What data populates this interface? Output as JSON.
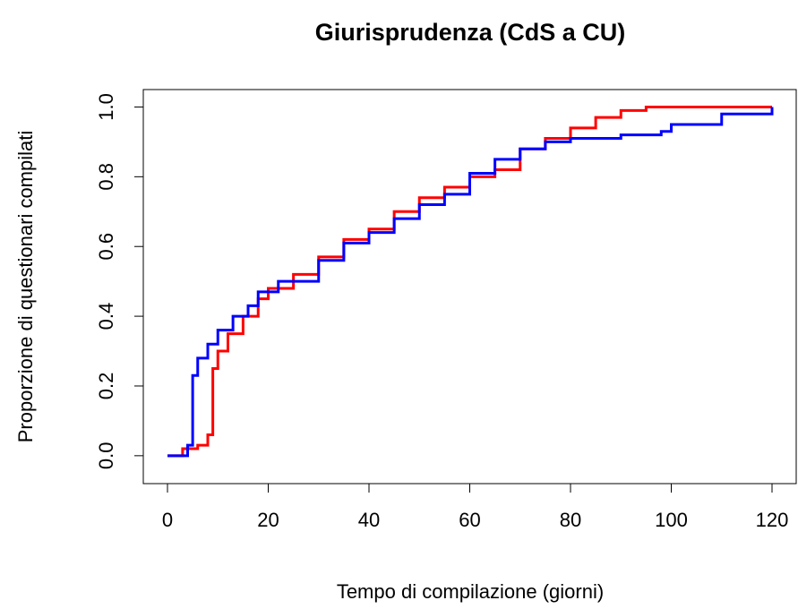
{
  "chart_data": {
    "type": "step",
    "title": "Giurisprudenza (CdS a CU)",
    "x_label": "Tempo di compilazione (giorni)",
    "y_label": "Proporzione di questionari compilati",
    "xlim": [
      -4.8,
      124.8
    ],
    "ylim": [
      -0.08,
      1.05
    ],
    "xticks": [
      0,
      20,
      40,
      60,
      80,
      100,
      120
    ],
    "yticks": [
      {
        "value": 0,
        "label": "0.0"
      },
      0.2,
      0.4,
      0.6,
      0.8,
      {
        "value": 1,
        "label": "1.0"
      }
    ],
    "series": [
      {
        "color": "#ff0000",
        "x": [
          0,
          3,
          6,
          8,
          9,
          10,
          12,
          15,
          18,
          20,
          25,
          30,
          35,
          40,
          45,
          50,
          55,
          60,
          65,
          70,
          75,
          80,
          85,
          90,
          95,
          120
        ],
        "values": [
          0,
          0.02,
          0.03,
          0.06,
          0.25,
          0.3,
          0.35,
          0.4,
          0.45,
          0.48,
          0.52,
          0.57,
          0.62,
          0.65,
          0.7,
          0.74,
          0.77,
          0.8,
          0.82,
          0.88,
          0.91,
          0.94,
          0.97,
          0.99,
          1,
          1
        ]
      },
      {
        "color": "#0000ff",
        "x": [
          0,
          4,
          5,
          5,
          6,
          8,
          10,
          13,
          16,
          18,
          22,
          30,
          35,
          40,
          45,
          50,
          55,
          60,
          65,
          70,
          75,
          80,
          90,
          98,
          100,
          110,
          120
        ],
        "values": [
          0,
          0.03,
          0.06,
          0.23,
          0.28,
          0.32,
          0.36,
          0.4,
          0.43,
          0.47,
          0.5,
          0.56,
          0.61,
          0.64,
          0.68,
          0.72,
          0.75,
          0.81,
          0.85,
          0.88,
          0.9,
          0.91,
          0.92,
          0.93,
          0.95,
          0.98,
          1
        ]
      }
    ]
  }
}
